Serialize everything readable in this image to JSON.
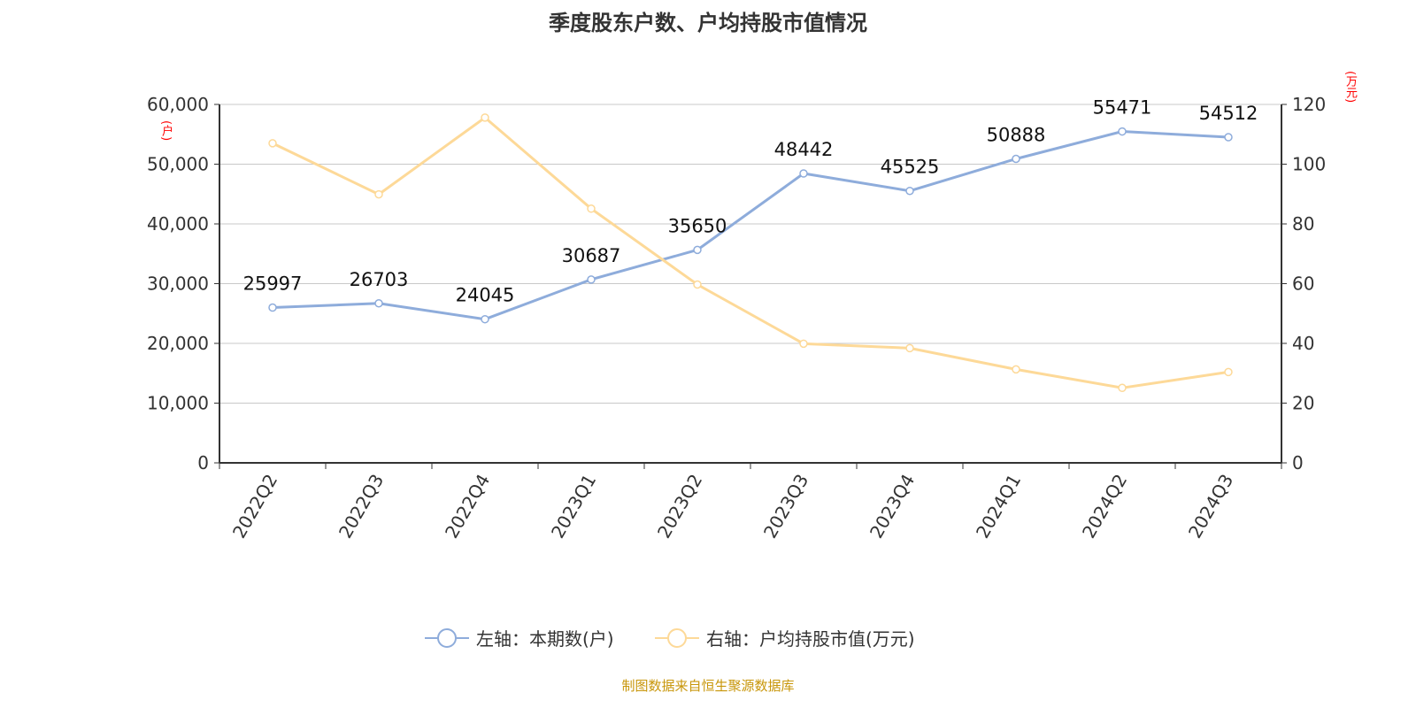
{
  "title": "季度股东户数、户均持股市值情况",
  "source": "制图数据来自恒生聚源数据库",
  "left_unit": "(户)",
  "right_unit": "(万元)",
  "colors": {
    "left_series": "#8eacdb",
    "right_series": "#fdd998",
    "grid": "#c8c8c8",
    "axis": "#333333",
    "unit": "#ff0000",
    "source": "#c8960a"
  },
  "chart_data": {
    "type": "line",
    "categories": [
      "2022Q2",
      "2022Q3",
      "2022Q4",
      "2023Q1",
      "2023Q2",
      "2023Q3",
      "2023Q4",
      "2024Q1",
      "2024Q2",
      "2024Q3"
    ],
    "left_axis": {
      "ylim": [
        0,
        60000
      ],
      "ticks": [
        "0",
        "10,000",
        "20,000",
        "30,000",
        "40,000",
        "50,000",
        "60,000"
      ],
      "unit": "(户)"
    },
    "right_axis": {
      "ylim": [
        0,
        120
      ],
      "ticks": [
        "0",
        "20",
        "40",
        "60",
        "80",
        "100",
        "120"
      ],
      "unit": "(万元)"
    },
    "grid": true,
    "legend_position": "bottom",
    "series": [
      {
        "name": "左轴：本期数(户)",
        "axis": "left",
        "values": [
          25997,
          26703,
          24045,
          30687,
          35650,
          48442,
          45525,
          50888,
          55471,
          54512
        ],
        "data_labels": true
      },
      {
        "name": "右轴：户均持股市值(万元)",
        "axis": "right",
        "values": [
          107.0,
          89.9,
          115.6,
          85.1,
          59.7,
          39.9,
          38.4,
          31.3,
          25.1,
          30.4
        ],
        "data_labels": false
      }
    ]
  }
}
